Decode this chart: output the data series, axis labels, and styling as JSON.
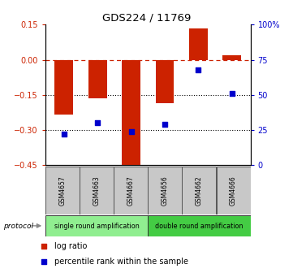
{
  "title": "GDS224 / 11769",
  "samples": [
    "GSM4657",
    "GSM4663",
    "GSM4667",
    "GSM4656",
    "GSM4662",
    "GSM4666"
  ],
  "log_ratio": [
    -0.235,
    -0.165,
    -0.46,
    -0.185,
    0.135,
    0.02
  ],
  "percentile": [
    22,
    30,
    24,
    29,
    68,
    51
  ],
  "ylim_left": [
    -0.45,
    0.15
  ],
  "ylim_right": [
    0,
    100
  ],
  "yticks_left": [
    0.15,
    0.0,
    -0.15,
    -0.3,
    -0.45
  ],
  "yticks_right": [
    100,
    75,
    50,
    25,
    0
  ],
  "right_labels": [
    "100%",
    "75",
    "50",
    "25",
    "0"
  ],
  "protocol_groups": [
    {
      "label": "single round amplification",
      "indices": [
        0,
        1,
        2
      ],
      "color": "#90ee90"
    },
    {
      "label": "double round amplification",
      "indices": [
        3,
        4,
        5
      ],
      "color": "#44cc44"
    }
  ],
  "bar_color": "#cc2200",
  "dot_color": "#0000cc",
  "bar_width": 0.55,
  "background_color": "#ffffff",
  "sample_box_color": "#c8c8c8",
  "legend_items": [
    {
      "label": "log ratio",
      "color": "#cc2200"
    },
    {
      "label": "percentile rank within the sample",
      "color": "#0000cc"
    }
  ]
}
